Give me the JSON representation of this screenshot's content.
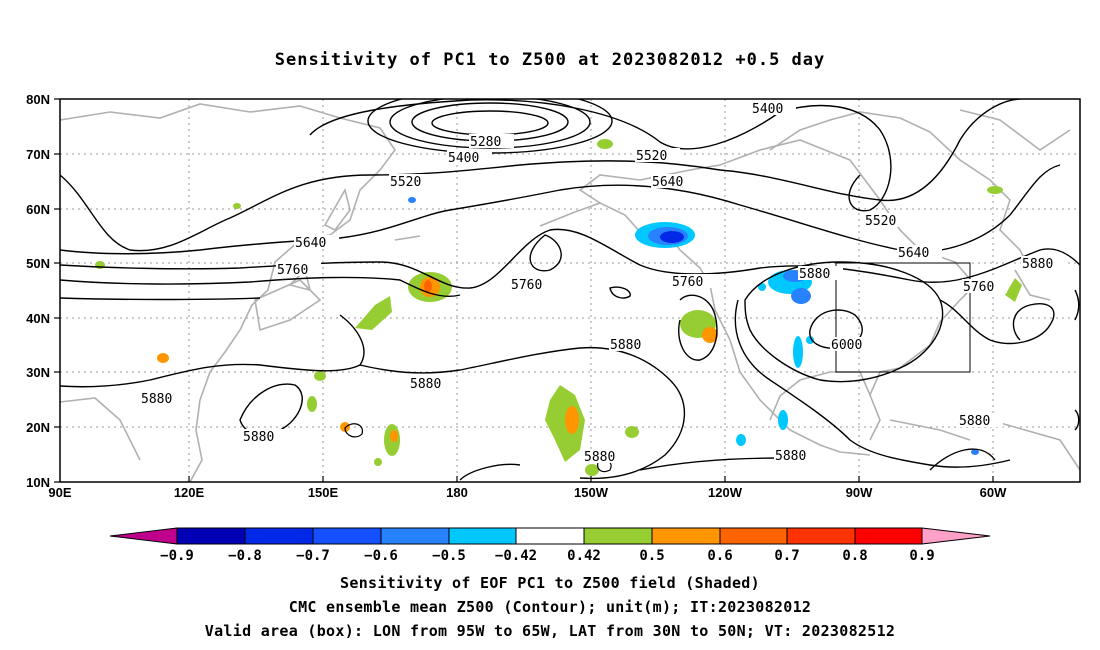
{
  "title": "Sensitivity of PC1 to Z500 at 2023082012 +0.5 day",
  "map": {
    "lat_labels": [
      "80N",
      "70N",
      "60N",
      "50N",
      "40N",
      "30N",
      "20N",
      "10N"
    ],
    "lon_labels": [
      "90E",
      "120E",
      "150E",
      "180",
      "150W",
      "120W",
      "90W",
      "60W"
    ],
    "contour_labels": [
      "5400",
      "5280",
      "5400",
      "5520",
      "5520",
      "5640",
      "5640",
      "5760",
      "5760",
      "5760",
      "5880",
      "6000",
      "5880",
      "5880",
      "5880",
      "5880",
      "5880",
      "5880",
      "5880",
      "5520",
      "5640",
      "5760"
    ],
    "box": {
      "lon_from": "95W",
      "lon_to": "65W",
      "lat_from": "30N",
      "lat_to": "50N"
    }
  },
  "colorbar": {
    "labels": [
      "−0.9",
      "−0.8",
      "−0.7",
      "−0.6",
      "−0.5",
      "−0.42",
      "0.42",
      "0.5",
      "0.6",
      "0.7",
      "0.8",
      "0.9"
    ],
    "colors": [
      "#c0008c",
      "#0000b4",
      "#0028e6",
      "#1450ff",
      "#2882ff",
      "#00c8ff",
      "#ffffff",
      "#96cd32",
      "#ff9600",
      "#ff6400",
      "#ff3200",
      "#ff0000",
      "#ffa0c8"
    ]
  },
  "captions": {
    "line1": "Sensitivity of EOF PC1 to Z500 field (Shaded)",
    "line2": "CMC ensemble mean Z500 (Contour); unit(m); IT:2023082012",
    "line3": "Valid area (box): LON from 95W to 65W, LAT from 30N to 50N; VT: 2023082512"
  }
}
